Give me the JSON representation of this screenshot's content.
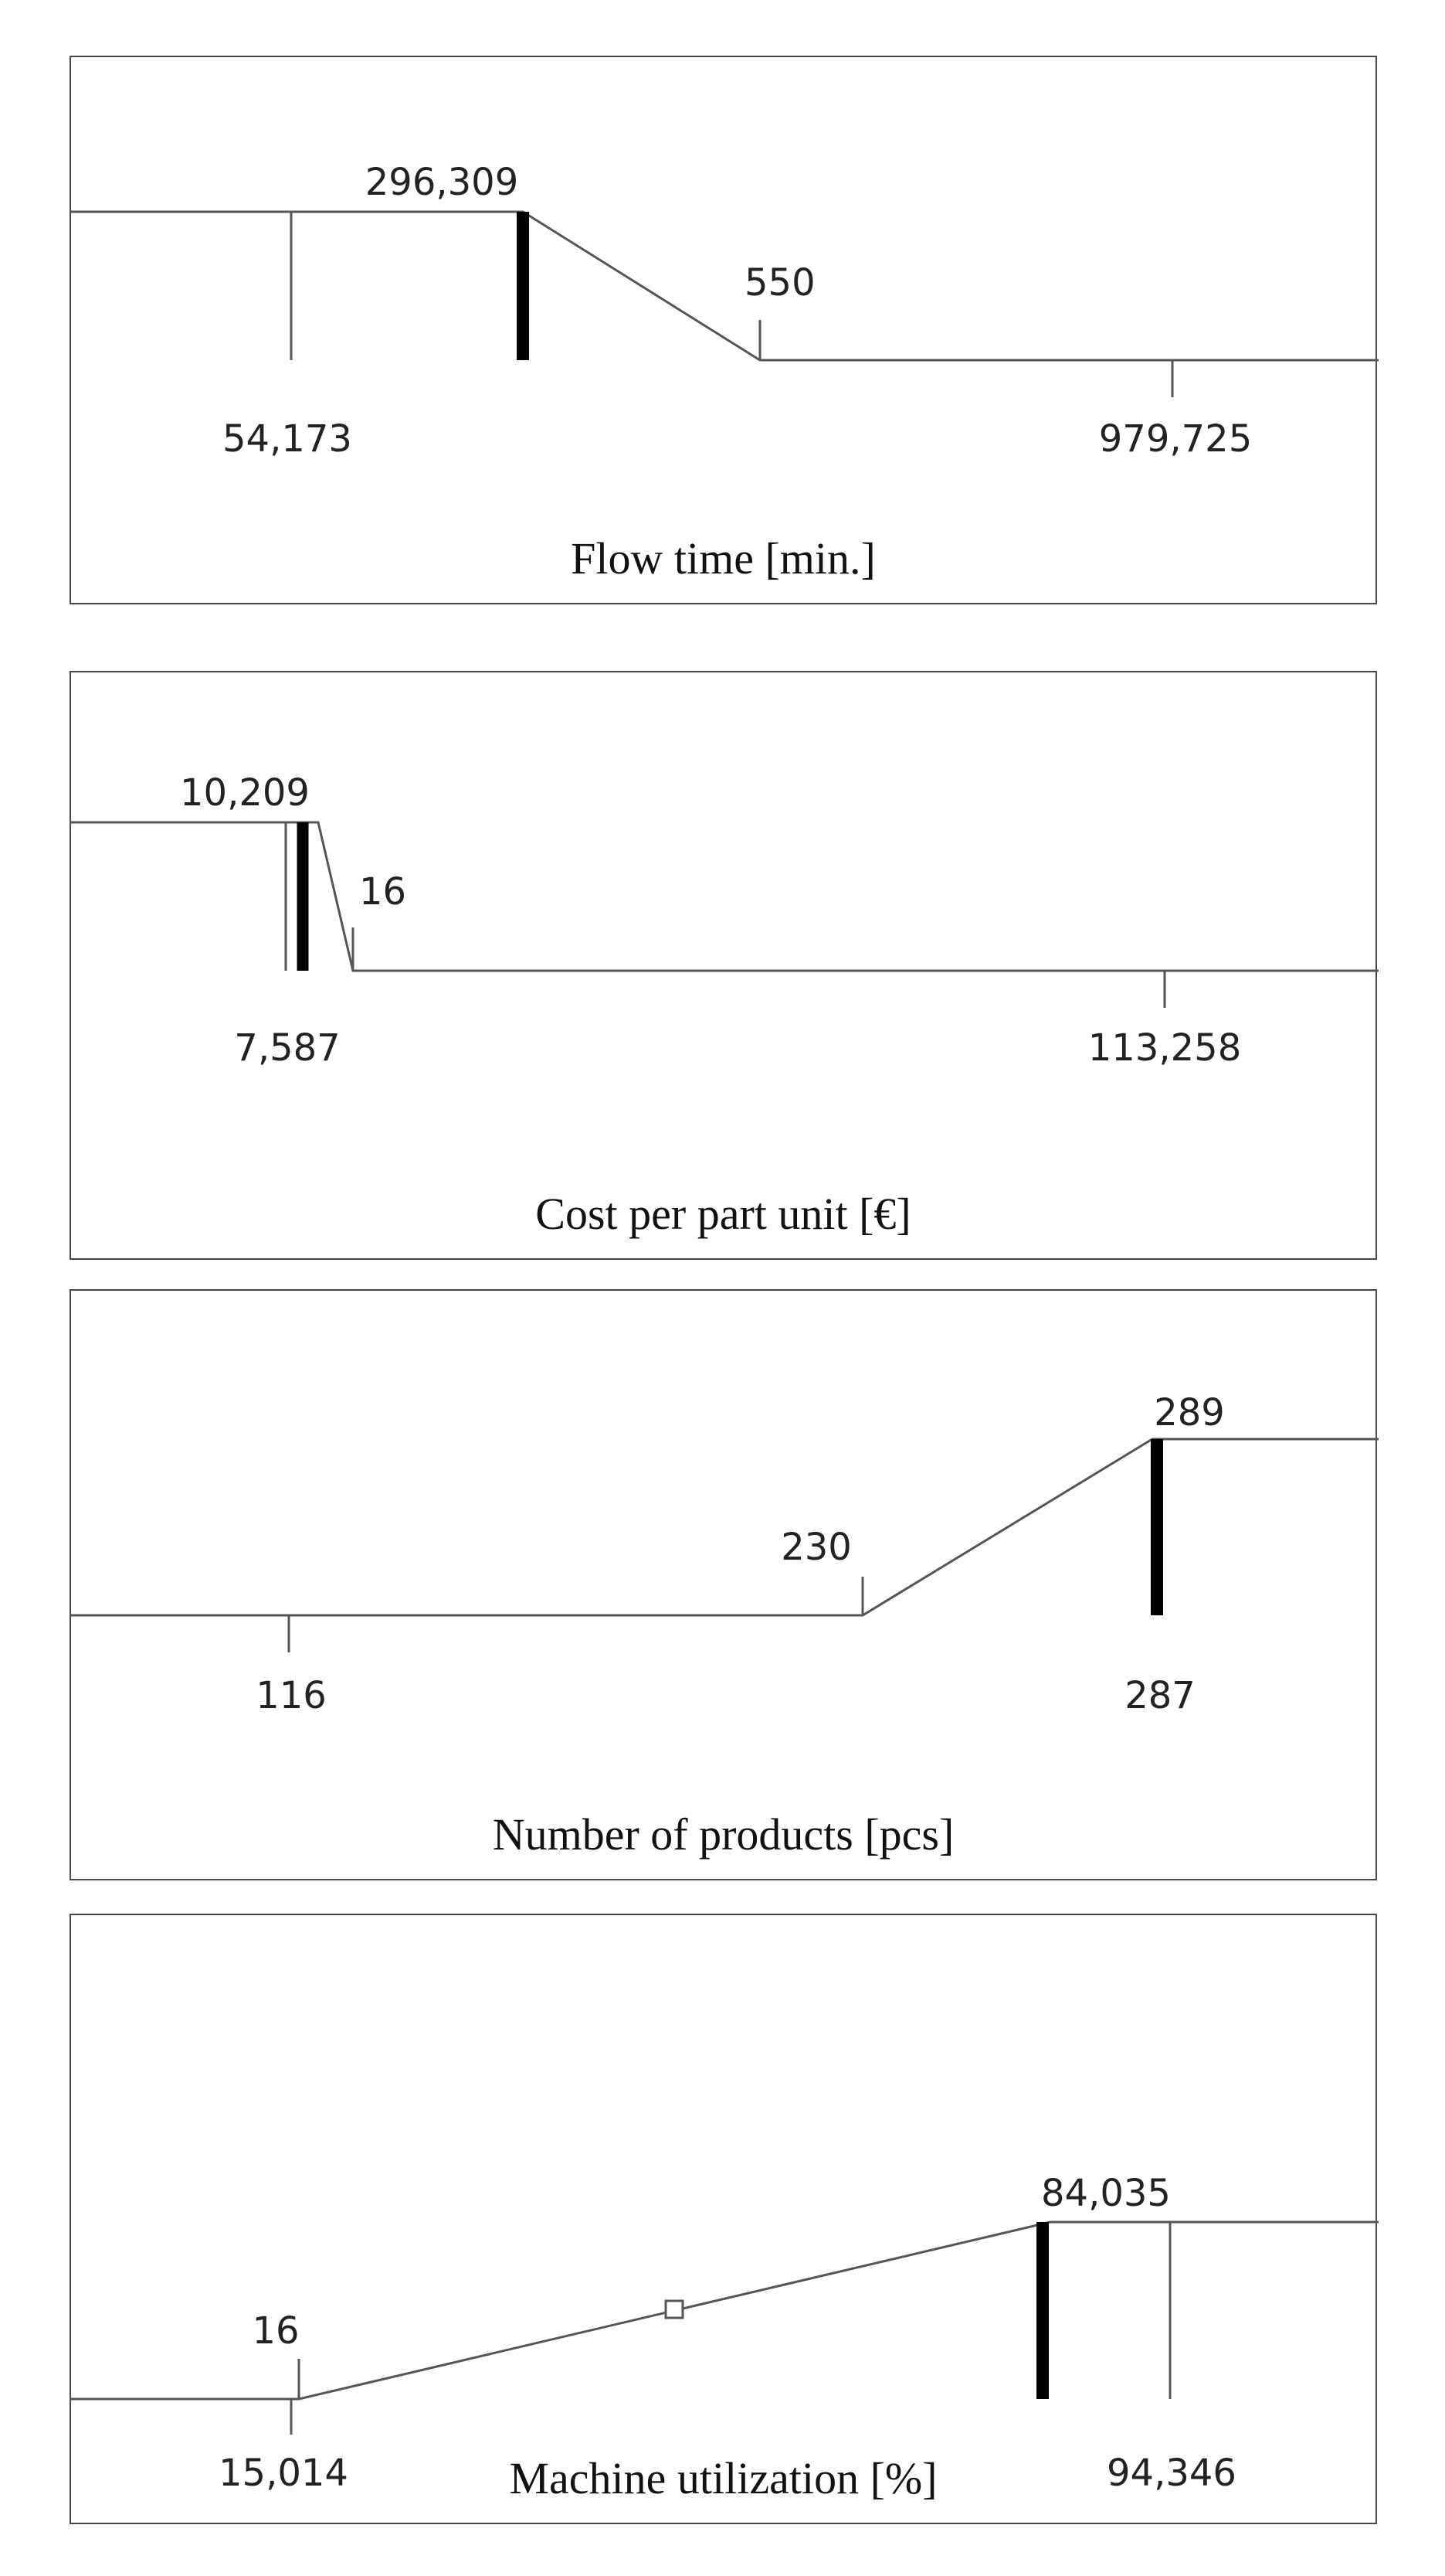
{
  "chart_data": [
    {
      "type": "line",
      "title": "Flow time [min.]",
      "profile": {
        "x": [
          "54,173",
          "296,309",
          "550",
          "979,725"
        ],
        "y": [
          1,
          1,
          0,
          0
        ]
      },
      "xlim_labels": [
        "54,173",
        "979,725"
      ],
      "breakpoints": [
        {
          "label": "296,309",
          "level": "high"
        },
        {
          "label": "550",
          "level": "low"
        }
      ],
      "markers": [
        {
          "label": "54,173",
          "kind": "thin",
          "level": "low"
        },
        {
          "label": "296,309",
          "kind": "thick"
        },
        {
          "label": "979,725",
          "kind": "thin",
          "level": "low"
        }
      ]
    },
    {
      "type": "line",
      "title": "Cost per part unit [€]",
      "profile": {
        "x": [
          "7,587",
          "10,209",
          "16",
          "113,258"
        ],
        "y": [
          1,
          1,
          0,
          0
        ]
      },
      "xlim_labels": [
        "7,587",
        "113,258"
      ],
      "breakpoints": [
        {
          "label": "10,209",
          "level": "high"
        },
        {
          "label": "16",
          "level": "low"
        }
      ],
      "markers": [
        {
          "label": "7,587",
          "kind": "thin"
        },
        {
          "label": "10,209",
          "kind": "thick"
        },
        {
          "label": "113,258",
          "kind": "thin",
          "level": "low"
        }
      ]
    },
    {
      "type": "line",
      "title": "Number of products [pcs]",
      "profile": {
        "x": [
          "116",
          "230",
          "289",
          "287"
        ],
        "y": [
          0,
          0,
          1,
          1
        ]
      },
      "xlim_labels": [
        "116",
        "287"
      ],
      "breakpoints": [
        {
          "label": "230",
          "level": "low"
        },
        {
          "label": "289",
          "level": "high"
        }
      ],
      "markers": [
        {
          "label": "116",
          "kind": "thin",
          "level": "low"
        },
        {
          "label": "287",
          "kind": "thick"
        }
      ]
    },
    {
      "type": "line",
      "title": "Machine utilization [%]",
      "profile": {
        "x": [
          "15,014",
          "16",
          "84,035",
          "94,346"
        ],
        "y": [
          0,
          0,
          1,
          1
        ]
      },
      "xlim_labels": [
        "15,014",
        "94,346"
      ],
      "breakpoints": [
        {
          "label": "16",
          "level": "low"
        },
        {
          "label": "84,035",
          "level": "high"
        }
      ],
      "midpoint_marker": "square",
      "markers": [
        {
          "label": "15,014",
          "kind": "thin",
          "level": "low"
        },
        {
          "label": "84,035",
          "kind": "thick"
        },
        {
          "label": "94,346",
          "kind": "thin",
          "level": "low"
        }
      ]
    }
  ],
  "colors": {
    "line": "#555555",
    "thick_marker": "#000000",
    "frame": "#4a4a4a",
    "text": "#222222"
  }
}
